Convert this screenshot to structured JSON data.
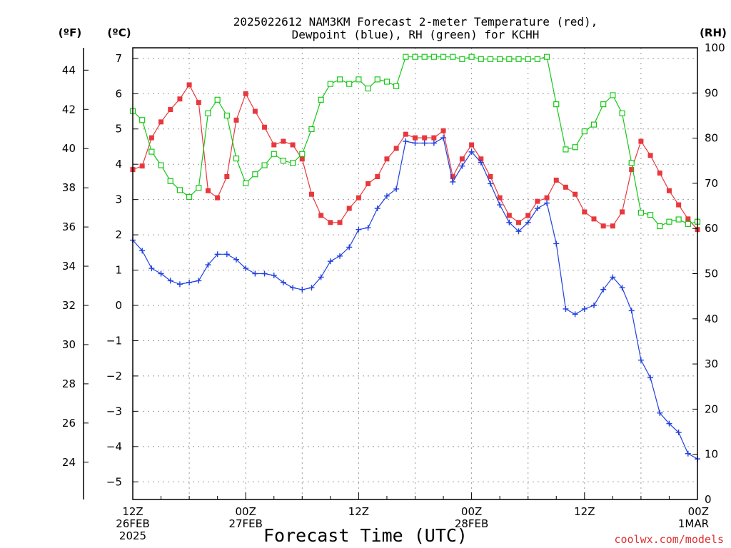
{
  "title_line1": "2025022612 NAM3KM Forecast 2-meter Temperature (red),",
  "title_line2": "Dewpoint (blue), RH (green) for KCHH",
  "unit_f": "(ºF)",
  "unit_c": "(ºC)",
  "unit_rh": "(RH)",
  "credit": "coolwx.com/models",
  "colors": {
    "temperature": "#e8383d",
    "dewpoint": "#2040e0",
    "rh": "#18c818"
  },
  "chart_data": {
    "type": "line",
    "x_axis": {
      "label": "Forecast Time (UTC)",
      "range_hours": [
        0,
        60
      ],
      "step_hours": 1,
      "ticks": [
        {
          "hour": 0,
          "lines": [
            "12Z",
            "26FEB",
            "2025"
          ]
        },
        {
          "hour": 12,
          "lines": [
            "00Z",
            "27FEB"
          ]
        },
        {
          "hour": 24,
          "lines": [
            "12Z"
          ]
        },
        {
          "hour": 36,
          "lines": [
            "00Z",
            "28FEB"
          ]
        },
        {
          "hour": 48,
          "lines": [
            "12Z"
          ]
        },
        {
          "hour": 60,
          "lines": [
            "00Z",
            "1MAR"
          ]
        }
      ]
    },
    "celsius_axis": {
      "range": [
        -5.5,
        7.3
      ],
      "ticks": [
        -5,
        -4,
        -3,
        -2,
        -1,
        0,
        1,
        2,
        3,
        4,
        5,
        6,
        7
      ]
    },
    "fahrenheit_axis": {
      "ticks": [
        24,
        26,
        28,
        30,
        32,
        34,
        36,
        38,
        40,
        42,
        44
      ]
    },
    "rh_axis": {
      "range": [
        0,
        100
      ],
      "ticks": [
        0,
        10,
        20,
        30,
        40,
        50,
        60,
        70,
        80,
        90,
        100
      ]
    },
    "grid": true,
    "series": [
      {
        "name": "Temperature",
        "axis": "celsius",
        "marker": "square",
        "values": [
          3.85,
          3.95,
          4.75,
          5.2,
          5.55,
          5.85,
          6.25,
          5.75,
          3.25,
          3.05,
          3.65,
          5.25,
          6.0,
          5.5,
          5.05,
          4.55,
          4.65,
          4.55,
          4.15,
          3.15,
          2.55,
          2.35,
          2.35,
          2.75,
          3.05,
          3.45,
          3.65,
          4.15,
          4.45,
          4.85,
          4.75,
          4.75,
          4.75,
          4.95,
          3.65,
          4.15,
          4.55,
          4.15,
          3.65,
          3.05,
          2.55,
          2.35,
          2.55,
          2.95,
          3.05,
          3.55,
          3.35,
          3.15,
          2.65,
          2.45,
          2.25,
          2.25,
          2.65,
          3.85,
          4.65,
          4.25,
          3.75,
          3.25,
          2.85,
          2.45,
          2.15
        ]
      },
      {
        "name": "Dewpoint",
        "axis": "celsius",
        "marker": "plus",
        "values": [
          1.85,
          1.55,
          1.05,
          0.9,
          0.7,
          0.6,
          0.65,
          0.7,
          1.15,
          1.45,
          1.45,
          1.3,
          1.05,
          0.9,
          0.9,
          0.85,
          0.65,
          0.5,
          0.45,
          0.5,
          0.8,
          1.25,
          1.4,
          1.65,
          2.15,
          2.2,
          2.75,
          3.1,
          3.3,
          4.65,
          4.6,
          4.6,
          4.6,
          4.75,
          3.5,
          3.95,
          4.35,
          4.05,
          3.45,
          2.85,
          2.35,
          2.1,
          2.35,
          2.75,
          2.9,
          1.75,
          -0.1,
          -0.25,
          -0.1,
          0.0,
          0.45,
          0.8,
          0.5,
          -0.15,
          -1.55,
          -2.05,
          -3.05,
          -3.35,
          -3.6,
          -4.2,
          -4.35
        ]
      },
      {
        "name": "RH",
        "axis": "rh",
        "marker": "open-square",
        "values": [
          86,
          84,
          77,
          74,
          70.5,
          68.5,
          67,
          69,
          85.5,
          88.5,
          85,
          75.5,
          70,
          72,
          74,
          76.5,
          75,
          74.5,
          76.5,
          82,
          88.5,
          92,
          93,
          92,
          93,
          91,
          93,
          92.5,
          91.5,
          98,
          98,
          98,
          98,
          98,
          98,
          97.5,
          98,
          97.5,
          97.5,
          97.5,
          97.5,
          97.5,
          97.5,
          97.5,
          98,
          87.5,
          77.5,
          78,
          81.5,
          83,
          87.5,
          89.5,
          85.5,
          74.5,
          63.5,
          63,
          60.5,
          61.5,
          62,
          61,
          61.5
        ]
      }
    ]
  }
}
